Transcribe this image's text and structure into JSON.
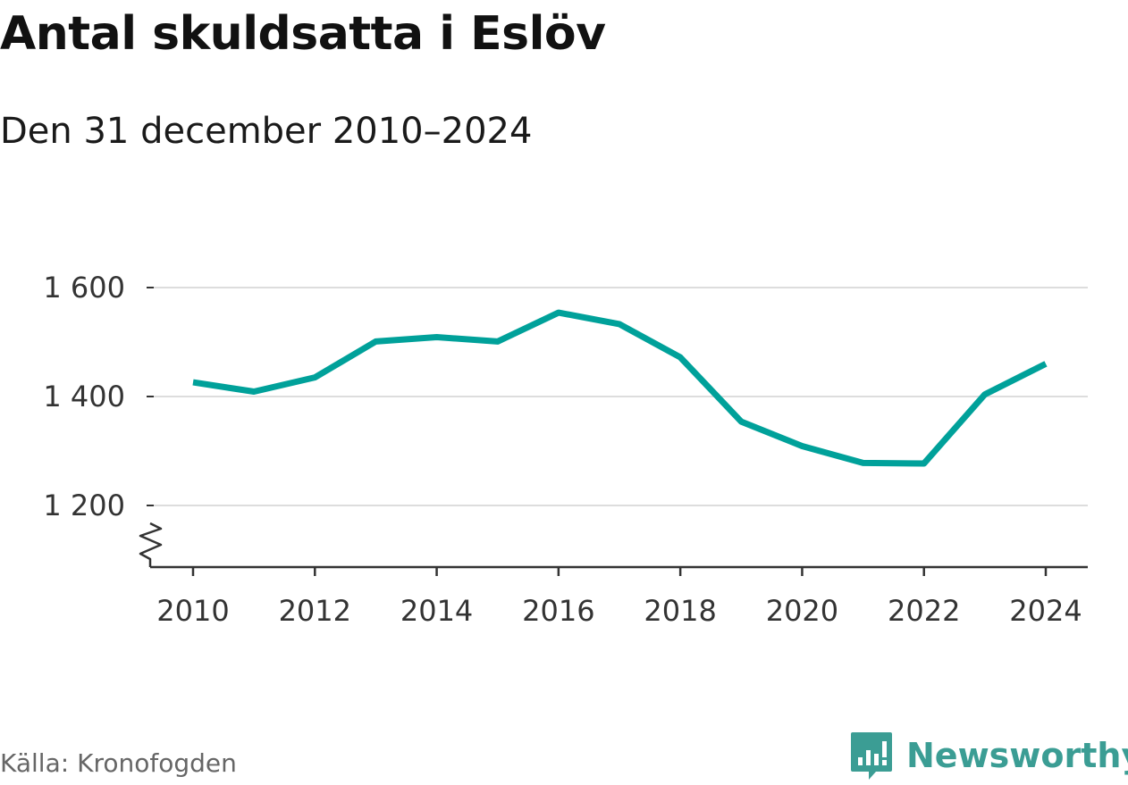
{
  "chart_data": {
    "type": "line",
    "title": "Antal skuldsatta i Eslöv",
    "subtitle": "Den 31 december 2010–2024",
    "x": [
      2010,
      2011,
      2012,
      2013,
      2014,
      2015,
      2016,
      2017,
      2018,
      2019,
      2020,
      2021,
      2022,
      2023,
      2024
    ],
    "x_ticks": [
      2010,
      2012,
      2014,
      2016,
      2018,
      2020,
      2022,
      2024
    ],
    "series": [
      {
        "values": [
          1426,
          1409,
          1435,
          1501,
          1509,
          1501,
          1554,
          1533,
          1472,
          1354,
          1309,
          1278,
          1277,
          1404,
          1460
        ]
      }
    ],
    "y_ticks": [
      1200,
      1400,
      1600
    ],
    "y_tick_labels": [
      "1 200",
      "1 400",
      "1 600"
    ],
    "ylim": [
      1200,
      1600
    ],
    "axis_break": true,
    "grid": "horizontal",
    "line_color": "#00a19a",
    "grid_color": "#dddddd",
    "axis_color": "#333333"
  },
  "source": "Källa: Kronofogden",
  "logo": {
    "text": "Newsworthy",
    "icon": "newsworthy-logo-icon",
    "color": "#3b9d94"
  }
}
